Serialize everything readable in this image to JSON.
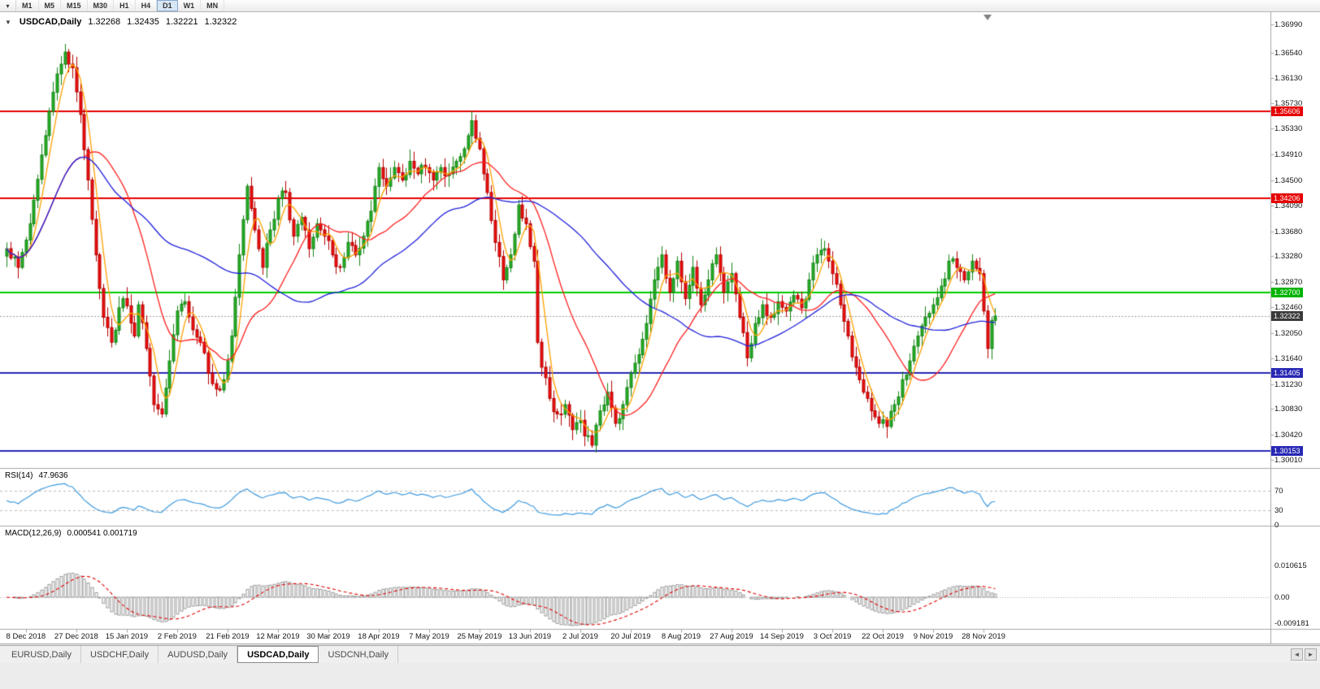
{
  "toolbar": {
    "dropdown_icon": "▾",
    "timeframes": [
      "M1",
      "M5",
      "M15",
      "M30",
      "H1",
      "H4",
      "D1",
      "W1",
      "MN"
    ],
    "active_timeframe": "D1"
  },
  "chart": {
    "collapse_icon": "▼",
    "title": "USDCAD,Daily",
    "ohlc": {
      "open": "1.32268",
      "high": "1.32435",
      "low": "1.32221",
      "close": "1.32322"
    }
  },
  "price_axis": {
    "ticks": [
      "1.36990",
      "1.36540",
      "1.36130",
      "1.35730",
      "1.35330",
      "1.34910",
      "1.34500",
      "1.34090",
      "1.33680",
      "1.33280",
      "1.32870",
      "1.32460",
      "1.32050",
      "1.31640",
      "1.31230",
      "1.30830",
      "1.30420",
      "1.30010"
    ],
    "current_price": {
      "text": "1.32322",
      "bg": "#3a3a3a"
    },
    "levels": [
      {
        "text": "1.35606",
        "price": 1.35606,
        "color": "#e60000"
      },
      {
        "text": "1.34206",
        "price": 1.34206,
        "color": "#e60000"
      },
      {
        "text": "1.32700",
        "price": 1.327,
        "color": "#00b400"
      },
      {
        "text": "1.31405",
        "price": 1.31405,
        "color": "#2828b4"
      },
      {
        "text": "1.30153",
        "price": 1.30153,
        "color": "#2828b4"
      }
    ]
  },
  "date_axis": {
    "labels": [
      {
        "text": "8 Dec 2018",
        "bar": 5
      },
      {
        "text": "27 Dec 2018",
        "bar": 18
      },
      {
        "text": "15 Jan 2019",
        "bar": 31
      },
      {
        "text": "2 Feb 2019",
        "bar": 44
      },
      {
        "text": "21 Feb 2019",
        "bar": 57
      },
      {
        "text": "12 Mar 2019",
        "bar": 70
      },
      {
        "text": "30 Mar 2019",
        "bar": 83
      },
      {
        "text": "18 Apr 2019",
        "bar": 96
      },
      {
        "text": "7 May 2019",
        "bar": 109
      },
      {
        "text": "25 May 2019",
        "bar": 122
      },
      {
        "text": "13 Jun 2019",
        "bar": 135
      },
      {
        "text": "2 Jul 2019",
        "bar": 148
      },
      {
        "text": "20 Jul 2019",
        "bar": 161
      },
      {
        "text": "8 Aug 2019",
        "bar": 174
      },
      {
        "text": "27 Aug 2019",
        "bar": 187
      },
      {
        "text": "14 Sep 2019",
        "bar": 200
      },
      {
        "text": "3 Oct 2019",
        "bar": 213
      },
      {
        "text": "22 Oct 2019",
        "bar": 226
      },
      {
        "text": "9 Nov 2019",
        "bar": 239
      },
      {
        "text": "28 Nov 2019",
        "bar": 252
      }
    ]
  },
  "rsi": {
    "title": "RSI(14)",
    "value": "47.9636",
    "levels": [
      "70",
      "30",
      "0"
    ]
  },
  "macd": {
    "title": "MACD(12,26,9)",
    "values": "0.000541 0.001719",
    "axis": [
      "0.010615",
      "0.00",
      "-0.009181"
    ]
  },
  "tabs": {
    "items": [
      "EURUSD,Daily",
      "USDCHF,Daily",
      "AUDUSD,Daily",
      "USDCAD,Daily",
      "USDCNH,Daily"
    ],
    "active": "USDCAD,Daily",
    "scroll_left_icon": "◄",
    "scroll_right_icon": "►"
  },
  "chart_data": {
    "type": "candlestick",
    "symbol": "USDCAD",
    "timeframe": "Daily",
    "bars_total": 256,
    "price_range_visible": [
      1.3001,
      1.3699
    ],
    "current_bid": 1.32322,
    "ohlc_current": {
      "open": 1.32268,
      "high": 1.32435,
      "low": 1.32221,
      "close": 1.32322
    },
    "close_keyframes": [
      [
        0,
        1.334
      ],
      [
        3,
        1.331
      ],
      [
        6,
        1.338
      ],
      [
        9,
        1.349
      ],
      [
        11,
        1.356
      ],
      [
        13,
        1.362
      ],
      [
        15,
        1.3655
      ],
      [
        17,
        1.363
      ],
      [
        19,
        1.3555
      ],
      [
        21,
        1.345
      ],
      [
        23,
        1.333
      ],
      [
        25,
        1.323
      ],
      [
        27,
        1.319
      ],
      [
        30,
        1.326
      ],
      [
        33,
        1.32
      ],
      [
        34,
        1.325
      ],
      [
        36,
        1.318
      ],
      [
        38,
        1.309
      ],
      [
        40,
        1.3075
      ],
      [
        42,
        1.316
      ],
      [
        44,
        1.324
      ],
      [
        46,
        1.3255
      ],
      [
        48,
        1.321
      ],
      [
        50,
        1.319
      ],
      [
        52,
        1.314
      ],
      [
        54,
        1.3115
      ],
      [
        56,
        1.313
      ],
      [
        58,
        1.32
      ],
      [
        60,
        1.333
      ],
      [
        62,
        1.344
      ],
      [
        64,
        1.337
      ],
      [
        66,
        1.331
      ],
      [
        68,
        1.337
      ],
      [
        70,
        1.342
      ],
      [
        72,
        1.343
      ],
      [
        74,
        1.336
      ],
      [
        76,
        1.339
      ],
      [
        78,
        1.334
      ],
      [
        80,
        1.338
      ],
      [
        82,
        1.336
      ],
      [
        84,
        1.333
      ],
      [
        86,
        1.331
      ],
      [
        88,
        1.335
      ],
      [
        90,
        1.333
      ],
      [
        92,
        1.336
      ],
      [
        94,
        1.34
      ],
      [
        96,
        1.347
      ],
      [
        98,
        1.344
      ],
      [
        100,
        1.347
      ],
      [
        102,
        1.345
      ],
      [
        104,
        1.348
      ],
      [
        106,
        1.346
      ],
      [
        108,
        1.347
      ],
      [
        110,
        1.345
      ],
      [
        112,
        1.347
      ],
      [
        114,
        1.346
      ],
      [
        116,
        1.348
      ],
      [
        118,
        1.35
      ],
      [
        120,
        1.3545
      ],
      [
        122,
        1.35
      ],
      [
        124,
        1.343
      ],
      [
        126,
        1.335
      ],
      [
        128,
        1.329
      ],
      [
        130,
        1.333
      ],
      [
        132,
        1.341
      ],
      [
        134,
        1.338
      ],
      [
        136,
        1.332
      ],
      [
        137,
        1.319
      ],
      [
        138,
        1.315
      ],
      [
        140,
        1.31
      ],
      [
        142,
        1.3075
      ],
      [
        144,
        1.309
      ],
      [
        146,
        1.305
      ],
      [
        148,
        1.3065
      ],
      [
        149,
        1.304
      ],
      [
        151,
        1.3025
      ],
      [
        153,
        1.308
      ],
      [
        155,
        1.311
      ],
      [
        157,
        1.306
      ],
      [
        159,
        1.309
      ],
      [
        161,
        1.314
      ],
      [
        163,
        1.317
      ],
      [
        165,
        1.322
      ],
      [
        167,
        1.329
      ],
      [
        169,
        1.333
      ],
      [
        171,
        1.327
      ],
      [
        173,
        1.332
      ],
      [
        175,
        1.326
      ],
      [
        177,
        1.331
      ],
      [
        179,
        1.325
      ],
      [
        181,
        1.329
      ],
      [
        183,
        1.333
      ],
      [
        185,
        1.327
      ],
      [
        187,
        1.33
      ],
      [
        189,
        1.323
      ],
      [
        191,
        1.3165
      ],
      [
        193,
        1.322
      ],
      [
        195,
        1.325
      ],
      [
        197,
        1.323
      ],
      [
        199,
        1.3255
      ],
      [
        201,
        1.324
      ],
      [
        203,
        1.3265
      ],
      [
        205,
        1.3245
      ],
      [
        207,
        1.329
      ],
      [
        209,
        1.333
      ],
      [
        211,
        1.334
      ],
      [
        213,
        1.33
      ],
      [
        215,
        1.325
      ],
      [
        217,
        1.32
      ],
      [
        219,
        1.315
      ],
      [
        221,
        1.311
      ],
      [
        223,
        1.308
      ],
      [
        225,
        1.306
      ],
      [
        227,
        1.3055
      ],
      [
        229,
        1.309
      ],
      [
        231,
        1.313
      ],
      [
        233,
        1.316
      ],
      [
        235,
        1.32
      ],
      [
        237,
        1.323
      ],
      [
        239,
        1.325
      ],
      [
        241,
        1.328
      ],
      [
        243,
        1.332
      ],
      [
        245,
        1.331
      ],
      [
        247,
        1.329
      ],
      [
        249,
        1.332
      ],
      [
        251,
        1.33
      ],
      [
        252,
        1.324
      ],
      [
        253,
        1.318
      ],
      [
        254,
        1.3225
      ],
      [
        255,
        1.3232
      ]
    ],
    "moving_averages": [
      {
        "period": 5,
        "color": "#ffa000"
      },
      {
        "period": 21,
        "color": "#ff2020"
      },
      {
        "period": 55,
        "color": "#2020dc"
      }
    ],
    "horizontal_lines": [
      {
        "price": 1.35606,
        "color": "#e60000"
      },
      {
        "price": 1.34206,
        "color": "#e60000"
      },
      {
        "price": 1.327,
        "color": "#00cc00"
      },
      {
        "price": 1.31405,
        "color": "#2828b4"
      },
      {
        "price": 1.30153,
        "color": "#2828b4"
      }
    ],
    "indicators": [
      {
        "name": "RSI",
        "period": 14,
        "current": 47.9636,
        "levels": [
          70,
          30
        ]
      },
      {
        "name": "MACD",
        "fast": 12,
        "slow": 26,
        "signal": 9,
        "main_current": 0.000541,
        "signal_current": 0.001719
      }
    ],
    "colors": {
      "bull_candle": "#27ae27",
      "bear_candle": "#ee1111",
      "rsi_line": "#3e9ade",
      "macd_histogram": "#9a9a9a",
      "macd_signal": "#e00000",
      "background": "#ffffff"
    }
  }
}
